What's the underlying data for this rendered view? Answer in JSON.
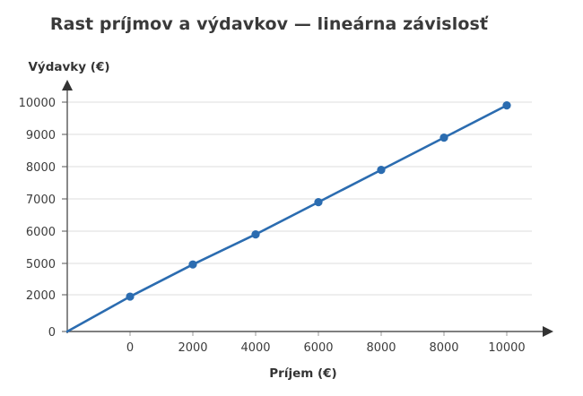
{
  "chart_data": {
    "type": "line",
    "title": "Rast príjmov a výdavkov — lineárna závislosť",
    "xlabel": "Príjem (€)",
    "ylabel": "Výdavky (€)",
    "x_tick_labels": [
      "0",
      "2000",
      "4000",
      "6000",
      "8000",
      "8000",
      "10000"
    ],
    "y_tick_labels": [
      "0",
      "2000",
      "5000",
      "6000",
      "7000",
      "8000",
      "9000",
      "10000"
    ],
    "series": [
      {
        "name": "Výdavky",
        "color": "#2b6cb0",
        "x": [
          "0",
          "2000",
          "4000",
          "6000",
          "8000",
          "8000",
          "10000"
        ],
        "values": [
          1900,
          4900,
          5900,
          6900,
          7900,
          8900,
          9900
        ],
        "starts_at_origin": true
      }
    ],
    "grid": true,
    "legend": "none",
    "ylim": [
      0,
      10000
    ]
  },
  "colors": {
    "line": "#2b6cb0",
    "axis": "#444444",
    "grid": "#dddddd"
  }
}
